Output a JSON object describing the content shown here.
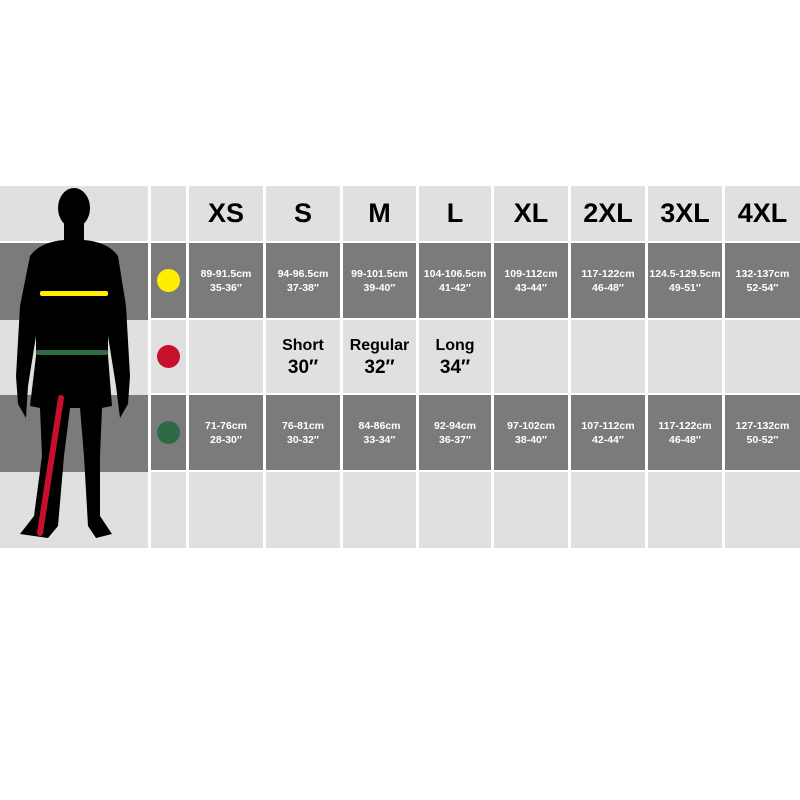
{
  "sizes": [
    "XS",
    "S",
    "M",
    "L",
    "XL",
    "2XL",
    "3XL",
    "4XL"
  ],
  "colors": {
    "chest": "#ffee00",
    "inseam": "#c8102e",
    "waist": "#2e6b45",
    "dark": "#7b7b7b",
    "light": "#e0e0e0"
  },
  "chest": [
    {
      "cm": "89-91.5cm",
      "in": "35-36″"
    },
    {
      "cm": "94-96.5cm",
      "in": "37-38″"
    },
    {
      "cm": "99-101.5cm",
      "in": "39-40″"
    },
    {
      "cm": "104-106.5cm",
      "in": "41-42″"
    },
    {
      "cm": "109-112cm",
      "in": "43-44″"
    },
    {
      "cm": "117-122cm",
      "in": "46-48″"
    },
    {
      "cm": "124.5-129.5cm",
      "in": "49-51″"
    },
    {
      "cm": "132-137cm",
      "in": "52-54″"
    }
  ],
  "inseam": [
    null,
    {
      "label": "Short",
      "value": "30″"
    },
    {
      "label": "Regular",
      "value": "32″"
    },
    {
      "label": "Long",
      "value": "34″"
    },
    null,
    null,
    null,
    null
  ],
  "waist": [
    {
      "cm": "71-76cm",
      "in": "28-30″"
    },
    {
      "cm": "76-81cm",
      "in": "30-32″"
    },
    {
      "cm": "84-86cm",
      "in": "33-34″"
    },
    {
      "cm": "92-94cm",
      "in": "36-37″"
    },
    {
      "cm": "97-102cm",
      "in": "38-40″"
    },
    {
      "cm": "107-112cm",
      "in": "42-44″"
    },
    {
      "cm": "117-122cm",
      "in": "46-48″"
    },
    {
      "cm": "127-132cm",
      "in": "50-52″"
    }
  ]
}
